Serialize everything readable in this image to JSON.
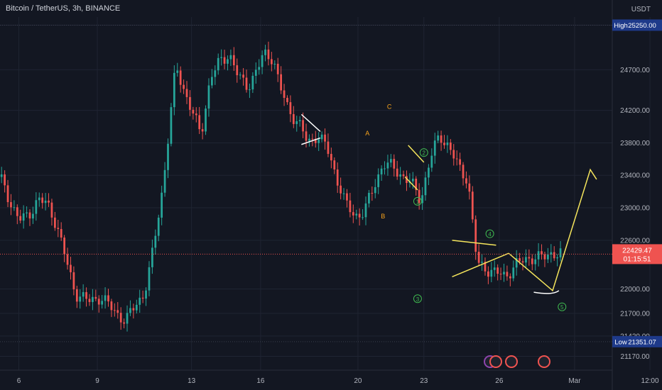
{
  "header": {
    "symbol_title": "Bitcoin / TetherUS, 3h, BINANCE",
    "currency": "USDT"
  },
  "colors": {
    "background": "#131722",
    "grid": "#1f2432",
    "up": "#26a69a",
    "down": "#ef5350",
    "drawing": "#f5e55c",
    "label_orange": "#f7a21b",
    "label_green": "#3fb950",
    "axis_text": "#b2b5be",
    "badge_blue": "#1e3a8a"
  },
  "chart_data": {
    "type": "candlestick",
    "title": "Bitcoin / TetherUS, 3h, BINANCE",
    "ylim": [
      21000,
      25350
    ],
    "y_ticks": [
      25250,
      24700,
      24200,
      23800,
      23400,
      23000,
      22600,
      22000,
      21700,
      21420,
      21170
    ],
    "x_tick_labels": [
      "6",
      "9",
      "13",
      "16",
      "20",
      "23",
      "26",
      "Mar",
      "12:00",
      "6",
      "9",
      "13"
    ],
    "price_series": [
      {
        "t": 0,
        "p": 23380
      },
      {
        "t": 3,
        "p": 23100
      },
      {
        "t": 6,
        "p": 22850
      },
      {
        "t": 9,
        "p": 22900
      },
      {
        "t": 12,
        "p": 23100
      },
      {
        "t": 15,
        "p": 23050
      },
      {
        "t": 18,
        "p": 22800
      },
      {
        "t": 20,
        "p": 22500
      },
      {
        "t": 24,
        "p": 21950
      },
      {
        "t": 28,
        "p": 21850
      },
      {
        "t": 32,
        "p": 21900
      },
      {
        "t": 36,
        "p": 21750
      },
      {
        "t": 40,
        "p": 21600
      },
      {
        "t": 43,
        "p": 21800
      },
      {
        "t": 46,
        "p": 21950
      },
      {
        "t": 48,
        "p": 22300
      },
      {
        "t": 52,
        "p": 23300
      },
      {
        "t": 56,
        "p": 24750
      },
      {
        "t": 60,
        "p": 24300
      },
      {
        "t": 64,
        "p": 23900
      },
      {
        "t": 67,
        "p": 24600
      },
      {
        "t": 70,
        "p": 24800
      },
      {
        "t": 73,
        "p": 24900
      },
      {
        "t": 76,
        "p": 24600
      },
      {
        "t": 79,
        "p": 24500
      },
      {
        "t": 82,
        "p": 24700
      },
      {
        "t": 84,
        "p": 24900
      },
      {
        "t": 87,
        "p": 24850
      },
      {
        "t": 89,
        "p": 24500
      },
      {
        "t": 92,
        "p": 24200
      },
      {
        "t": 95,
        "p": 24050
      },
      {
        "t": 98,
        "p": 23800
      },
      {
        "t": 101,
        "p": 23900
      },
      {
        "t": 104,
        "p": 23750
      },
      {
        "t": 107,
        "p": 23400
      },
      {
        "t": 110,
        "p": 23050
      },
      {
        "t": 113,
        "p": 22900
      },
      {
        "t": 116,
        "p": 22950
      },
      {
        "t": 119,
        "p": 23250
      },
      {
        "t": 122,
        "p": 23550
      },
      {
        "t": 125,
        "p": 23500
      },
      {
        "t": 128,
        "p": 23400
      },
      {
        "t": 131,
        "p": 23300
      },
      {
        "t": 134,
        "p": 23100
      },
      {
        "t": 137,
        "p": 23600
      },
      {
        "t": 140,
        "p": 23900
      },
      {
        "t": 143,
        "p": 23750
      },
      {
        "t": 146,
        "p": 23500
      },
      {
        "t": 149,
        "p": 23350
      },
      {
        "t": 152,
        "p": 22300
      },
      {
        "t": 155,
        "p": 22250
      },
      {
        "t": 158,
        "p": 22200
      },
      {
        "t": 161,
        "p": 22150
      },
      {
        "t": 164,
        "p": 22300
      },
      {
        "t": 167,
        "p": 22350
      },
      {
        "t": 170,
        "p": 22400
      },
      {
        "t": 173,
        "p": 22380
      },
      {
        "t": 176,
        "p": 22450
      },
      {
        "t": 179,
        "p": 22429
      }
    ],
    "highs_lows": {
      "high_label": "High",
      "high": "25250.00",
      "low_label": "Low",
      "low": "21351.07"
    },
    "last_price": {
      "value": "22429.47",
      "countdown": "01:15:51"
    },
    "wave_labels": [
      {
        "text": "A",
        "t": 117,
        "p": 23920,
        "color": "orange"
      },
      {
        "text": "B",
        "t": 122,
        "p": 22900,
        "color": "orange"
      },
      {
        "text": "C",
        "t": 124,
        "p": 24250,
        "color": "orange"
      },
      {
        "text": "1",
        "t": 133,
        "p": 23080,
        "color": "green"
      },
      {
        "text": "2",
        "t": 135,
        "p": 23680,
        "color": "green"
      },
      {
        "text": "3",
        "t": 133,
        "p": 21880,
        "color": "green"
      },
      {
        "text": "4",
        "t": 156,
        "p": 22680,
        "color": "green"
      },
      {
        "text": "5",
        "t": 179,
        "p": 21780,
        "color": "green"
      }
    ],
    "drawings": [
      {
        "kind": "wedge",
        "pts": [
          [
            96,
            24150
          ],
          [
            102,
            23940
          ],
          [
            96,
            23780
          ],
          [
            102,
            23860
          ]
        ],
        "color": "white"
      },
      {
        "kind": "wedge",
        "pts": [
          [
            130,
            23770
          ],
          [
            135,
            23560
          ],
          [
            129,
            23380
          ],
          [
            133,
            23220
          ]
        ],
        "color": "yellow"
      },
      {
        "kind": "triangle",
        "pts": [
          [
            144,
            22600
          ],
          [
            158,
            22540
          ],
          [
            144,
            22150
          ],
          [
            162,
            22440
          ]
        ],
        "color": "yellow"
      },
      {
        "kind": "path",
        "pts": [
          [
            162,
            22440
          ],
          [
            176,
            21980
          ],
          [
            188,
            23470
          ],
          [
            190,
            23350
          ]
        ],
        "color": "yellow"
      },
      {
        "kind": "arc",
        "pts": [
          [
            170,
            21960
          ],
          [
            176,
            21920
          ],
          [
            178,
            21980
          ]
        ],
        "color": "white"
      }
    ]
  }
}
